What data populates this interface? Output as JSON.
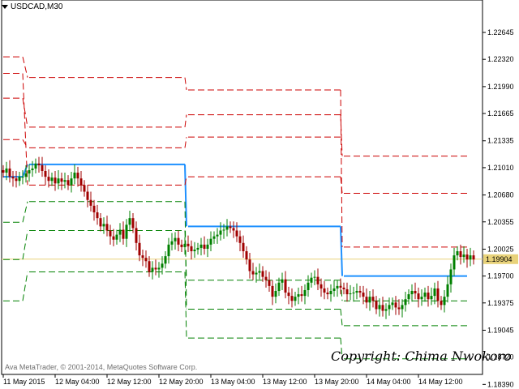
{
  "window": {
    "symbol": "USDCAD,M30",
    "menu_icon": "triangle-down-icon"
  },
  "credit": "Ava MetaTrader, © 2001-2014, MetaQuotes Software Corp.",
  "watermark": "Copyright: Chima Nwokoro",
  "colors": {
    "background": "#ffffff",
    "bull_candle": "#008000",
    "bear_candle": "#a00000",
    "pivot_line": "#1e90ff",
    "resistance": "#cc0000",
    "support": "#008000",
    "bid_line": "#e8d27a",
    "bid_label_bg": "#e8d27a"
  },
  "chart_data": {
    "type": "candlestick",
    "symbol": "USDCAD",
    "timeframe": "M30",
    "current_price": "1.19904",
    "ylim": [
      1.1855,
      1.229
    ],
    "y_tick_labels": [
      "1.22645",
      "1.22320",
      "1.21990",
      "1.21665",
      "1.21335",
      "1.21010",
      "1.20680",
      "1.20355",
      "1.20025",
      "1.19700",
      "1.19375",
      "1.19045",
      "1.18720",
      "1.18390"
    ],
    "x_tick_labels": [
      "11 May 2015",
      "12 May 04:00",
      "12 May 12:00",
      "12 May 20:00",
      "13 May 04:00",
      "13 May 12:00",
      "13 May 20:00",
      "14 May 04:00",
      "14 May 12:00"
    ],
    "bars_per_label": 16,
    "closes": [
      1.2095,
      1.21,
      1.209,
      1.2088,
      1.2085,
      1.209,
      1.209,
      1.2094,
      1.2098,
      1.21,
      1.2106,
      1.2104,
      1.2097,
      1.209,
      1.2085,
      1.2089,
      1.2082,
      1.2088,
      1.2084,
      1.2086,
      1.208,
      1.2088,
      1.2095,
      1.2088,
      1.208,
      1.2072,
      1.2062,
      1.2055,
      1.2047,
      1.204,
      1.203,
      1.2033,
      1.2025,
      1.2018,
      1.2014,
      1.202,
      1.2026,
      1.2015,
      1.2032,
      1.204,
      1.2028,
      1.201,
      1.1995,
      1.1992,
      1.1988,
      1.1975,
      1.198,
      1.1978,
      1.198,
      1.1985,
      1.1994,
      1.2008,
      1.2012,
      1.2016,
      1.2008,
      1.2005,
      1.2009,
      1.2006,
      1.2,
      1.2002,
      1.2004,
      1.2008,
      1.2003,
      1.2008,
      1.2015,
      1.2018,
      1.202,
      1.2025,
      1.2026,
      1.203,
      1.2028,
      1.2025,
      1.2018,
      1.201,
      1.2,
      1.199,
      1.1976,
      1.1972,
      1.1974,
      1.1976,
      1.1969,
      1.1965,
      1.1958,
      1.1945,
      1.1952,
      1.1962,
      1.1966,
      1.195,
      1.1946,
      1.194,
      1.1945,
      1.1948,
      1.1946,
      1.1953,
      1.1962,
      1.1968,
      1.1969,
      1.196,
      1.1955,
      1.195,
      1.1948,
      1.1952,
      1.1955,
      1.1958,
      1.1956,
      1.1954,
      1.1948,
      1.1949,
      1.195,
      1.1952,
      1.195,
      1.1945,
      1.1938,
      1.1945,
      1.194,
      1.193,
      1.1935,
      1.1928,
      1.193,
      1.1935,
      1.1938,
      1.1932,
      1.193,
      1.1935,
      1.1942,
      1.1948,
      1.1952,
      1.1949,
      1.1942,
      1.1945,
      1.195,
      1.1942,
      1.1946,
      1.1955,
      1.194,
      1.1935,
      1.1945,
      1.196,
      1.1978,
      1.1995,
      1.2,
      1.1993,
      1.1996,
      1.199,
      1.1995,
      1.199
    ],
    "pivot_levels": [
      {
        "name": "Pivot",
        "color": "pivot",
        "segments": [
          [
            1.209,
            1.209,
            0,
            6
          ],
          [
            1.2105,
            1.2105,
            8,
            56
          ],
          [
            1.203,
            1.203,
            57,
            104
          ],
          [
            1.197,
            1.197,
            105,
            143
          ]
        ]
      },
      {
        "name": "R1",
        "color": "resistance",
        "segments": [
          [
            1.2215,
            1.2215,
            0,
            6
          ],
          [
            1.208,
            1.208,
            8,
            56
          ],
          [
            1.209,
            1.209,
            57,
            104
          ],
          [
            1.207,
            1.207,
            105,
            143
          ]
        ]
      },
      {
        "name": "R2",
        "color": "resistance",
        "segments": [
          [
            1.2185,
            1.2185,
            0,
            6
          ],
          [
            1.215,
            1.215,
            8,
            56
          ],
          [
            1.2165,
            1.2165,
            57,
            104
          ],
          [
            1.2115,
            1.2115,
            105,
            143
          ]
        ]
      },
      {
        "name": "R3",
        "color": "resistance",
        "segments": [
          [
            1.2235,
            1.2235,
            0,
            6
          ],
          [
            1.221,
            1.221,
            8,
            56
          ],
          [
            1.2195,
            1.2195,
            57,
            104
          ],
          [
            1.2005,
            1.2005,
            105,
            143
          ]
        ]
      },
      {
        "name": "R4",
        "color": "resistance",
        "segments": [
          [
            1.2135,
            1.2135,
            0,
            6
          ],
          [
            1.2125,
            1.2125,
            8,
            56
          ],
          [
            1.2138,
            1.2138,
            57,
            104
          ]
        ]
      },
      {
        "name": "S1",
        "color": "support",
        "segments": [
          [
            1.199,
            1.199,
            0,
            6
          ],
          [
            1.2025,
            1.2025,
            8,
            56
          ],
          [
            1.1965,
            1.1965,
            57,
            104
          ],
          [
            1.194,
            1.194,
            105,
            143
          ]
        ]
      },
      {
        "name": "S2",
        "color": "support",
        "segments": [
          [
            1.2035,
            1.2035,
            0,
            6
          ],
          [
            1.206,
            1.206,
            8,
            56
          ],
          [
            1.193,
            1.193,
            57,
            104
          ],
          [
            1.191,
            1.191,
            105,
            143
          ]
        ]
      },
      {
        "name": "S3",
        "color": "support",
        "segments": [
          [
            1.194,
            1.194,
            0,
            6
          ],
          [
            1.1975,
            1.1975,
            8,
            56
          ],
          [
            1.1895,
            1.1895,
            57,
            104
          ],
          [
            1.187,
            1.187,
            105,
            143
          ]
        ]
      }
    ]
  }
}
